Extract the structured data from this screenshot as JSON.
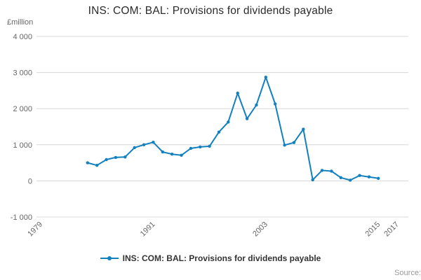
{
  "title": "INS: COM: BAL: Provisions for dividends payable",
  "y_unit": "£million",
  "source_label": "Source:",
  "legend": {
    "label": "INS: COM: BAL: Provisions for dividends payable"
  },
  "colors": {
    "line": "#1380be",
    "grid": "#d8d8d8",
    "axis_text": "#666666",
    "title_text": "#2b2b2b",
    "background": "#ffffff"
  },
  "chart_data": {
    "type": "line",
    "title": "INS: COM: BAL: Provisions for dividends payable",
    "xlabel": "",
    "ylabel": "£million",
    "xlim": [
      1979,
      2018.2
    ],
    "ylim": [
      -1000,
      4000
    ],
    "x_ticks": [
      1979,
      1991,
      2003,
      2015,
      2017
    ],
    "y_ticks": [
      -1000,
      0,
      1000,
      2000,
      3000,
      4000
    ],
    "y_tick_labels": [
      "-1 000",
      "0",
      "1 000",
      "2 000",
      "3 000",
      "4 000"
    ],
    "grid": "horizontal",
    "legend_position": "bottom",
    "marker": "circle",
    "x": [
      1984,
      1985,
      1986,
      1987,
      1988,
      1989,
      1990,
      1991,
      1992,
      1993,
      1994,
      1995,
      1996,
      1997,
      1998,
      1999,
      2000,
      2001,
      2002,
      2003,
      2004,
      2005,
      2006,
      2007,
      2008,
      2009,
      2010,
      2011,
      2012,
      2013,
      2014,
      2015
    ],
    "series": [
      {
        "name": "INS: COM: BAL: Provisions for dividends payable",
        "values": [
          500,
          430,
          590,
          650,
          660,
          920,
          1000,
          1070,
          800,
          740,
          710,
          900,
          940,
          960,
          1350,
          1630,
          2430,
          1720,
          2100,
          2870,
          2130,
          990,
          1060,
          1430,
          30,
          290,
          270,
          90,
          20,
          150,
          110,
          70
        ]
      }
    ]
  }
}
